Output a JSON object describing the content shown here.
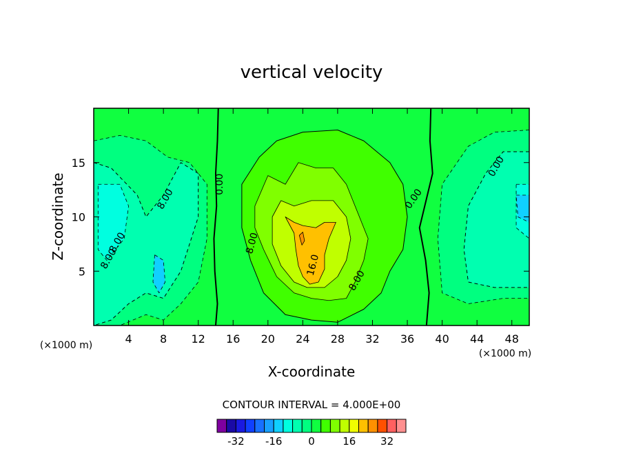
{
  "chart_data": {
    "type": "heatmap",
    "title": "vertical velocity",
    "xlabel": "X-coordinate",
    "ylabel": "Z-coordinate",
    "x_unit": "(×1000 m)",
    "x_unit_right": "(×1000 m)",
    "xlim": [
      0,
      50
    ],
    "ylim": [
      0,
      20
    ],
    "xticks": [
      "4",
      "8",
      "12",
      "16",
      "20",
      "24",
      "28",
      "32",
      "36",
      "40",
      "44",
      "48"
    ],
    "yticks": [
      "5",
      "10",
      "15"
    ],
    "contour_interval_text": "CONTOUR INTERVAL = 4.000E+00",
    "colorbar": {
      "levels": [
        -36,
        -32,
        -28,
        -24,
        -20,
        -16,
        -12,
        -8,
        -4,
        0,
        4,
        8,
        12,
        16,
        20,
        24,
        28,
        32,
        36
      ],
      "tick_labels": [
        "-32",
        "-16",
        "0",
        "16",
        "32"
      ],
      "colors": [
        "#7f00a0",
        "#1a0aa6",
        "#1a1ae0",
        "#1040ff",
        "#1870ff",
        "#18a0ff",
        "#10d0ff",
        "#00ffe0",
        "#00ffb0",
        "#00ff80",
        "#10ff40",
        "#40ff00",
        "#80ff00",
        "#c0ff00",
        "#f0ff00",
        "#ffc000",
        "#ff9000",
        "#ff5000",
        "#ff6060",
        "#ff9090"
      ]
    },
    "contour_labels": [
      "0.00",
      "8.00",
      "8.00",
      "0.00",
      "16.0",
      "8.00",
      "8.00",
      "0.00",
      "8.00"
    ],
    "regions": [
      {
        "value": 2,
        "color": "#10ff40",
        "note": "background 0 to 4"
      },
      {
        "value": -2,
        "color": "#00ff80",
        "polygon": [
          [
            0,
            17
          ],
          [
            3,
            17.5
          ],
          [
            6,
            17
          ],
          [
            8.5,
            15.5
          ],
          [
            11,
            15
          ],
          [
            13,
            13
          ],
          [
            13,
            8
          ],
          [
            12,
            4
          ],
          [
            10,
            2
          ],
          [
            8,
            0.5
          ],
          [
            6,
            1
          ],
          [
            3,
            0
          ],
          [
            0,
            0
          ]
        ]
      },
      {
        "value": -2,
        "color": "#00ff80",
        "polygon": [
          [
            50,
            18
          ],
          [
            46,
            17.8
          ],
          [
            43,
            16.5
          ],
          [
            40,
            13
          ],
          [
            39.5,
            8
          ],
          [
            40,
            3
          ],
          [
            43,
            2
          ],
          [
            47,
            2.5
          ],
          [
            50,
            2.5
          ]
        ]
      },
      {
        "value": -6,
        "color": "#00ffb0",
        "polygon": [
          [
            0,
            15
          ],
          [
            2,
            14.5
          ],
          [
            5,
            12
          ],
          [
            6,
            10
          ],
          [
            8,
            12
          ],
          [
            10,
            15
          ],
          [
            12,
            14
          ],
          [
            12,
            10
          ],
          [
            10,
            5
          ],
          [
            8,
            2.5
          ],
          [
            6,
            3
          ],
          [
            4,
            2
          ],
          [
            2,
            0.5
          ],
          [
            0,
            0
          ]
        ]
      },
      {
        "value": -6,
        "color": "#00ffb0",
        "polygon": [
          [
            50,
            16
          ],
          [
            47,
            16
          ],
          [
            45,
            14
          ],
          [
            43,
            11
          ],
          [
            42.5,
            7
          ],
          [
            43,
            4
          ],
          [
            46,
            3.5
          ],
          [
            50,
            3.5
          ]
        ]
      },
      {
        "value": -10,
        "color": "#00ffe0",
        "polygon": [
          [
            0.5,
            13
          ],
          [
            3,
            13
          ],
          [
            4,
            11
          ],
          [
            3.5,
            8
          ],
          [
            1.5,
            6
          ],
          [
            0.5,
            7
          ]
        ]
      },
      {
        "value": -10,
        "color": "#00ffe0",
        "polygon": [
          [
            48.5,
            13
          ],
          [
            50,
            13
          ],
          [
            50,
            8
          ],
          [
            48.5,
            9
          ]
        ]
      },
      {
        "value": -14,
        "color": "#10d0ff",
        "polygon": [
          [
            7,
            6.5
          ],
          [
            8,
            6
          ],
          [
            8.2,
            4
          ],
          [
            7.5,
            3
          ],
          [
            6.8,
            4
          ]
        ]
      },
      {
        "value": -14,
        "color": "#10d0ff",
        "polygon": [
          [
            48.5,
            12
          ],
          [
            50,
            12
          ],
          [
            50,
            9.5
          ],
          [
            48.7,
            10
          ]
        ]
      },
      {
        "value": 6,
        "color": "#40ff00",
        "polygon": [
          [
            17,
            13
          ],
          [
            19,
            15.5
          ],
          [
            21,
            17
          ],
          [
            24,
            17.8
          ],
          [
            28,
            18
          ],
          [
            31,
            17
          ],
          [
            34,
            15
          ],
          [
            35.5,
            13
          ],
          [
            36,
            10
          ],
          [
            35.5,
            7
          ],
          [
            34,
            5
          ],
          [
            33,
            3
          ],
          [
            31,
            1.5
          ],
          [
            28,
            0.3
          ],
          [
            25,
            0.5
          ],
          [
            22,
            1
          ],
          [
            19.5,
            3
          ],
          [
            18,
            6
          ],
          [
            17,
            9
          ]
        ]
      },
      {
        "value": 10,
        "color": "#80ff00",
        "polygon": [
          [
            18.5,
            11
          ],
          [
            20,
            13.8
          ],
          [
            22,
            13
          ],
          [
            23.5,
            15
          ],
          [
            25.5,
            14.5
          ],
          [
            27.5,
            14.5
          ],
          [
            29,
            13
          ],
          [
            30,
            11
          ],
          [
            31.5,
            8
          ],
          [
            31,
            6
          ],
          [
            30,
            4
          ],
          [
            29,
            2.5
          ],
          [
            27,
            2.3
          ],
          [
            25,
            2.5
          ],
          [
            23,
            3
          ],
          [
            21,
            4.5
          ],
          [
            19.5,
            7
          ],
          [
            18.5,
            9
          ]
        ]
      },
      {
        "value": 14,
        "color": "#c0ff00",
        "polygon": [
          [
            20.5,
            10
          ],
          [
            21.5,
            11.5
          ],
          [
            23,
            11
          ],
          [
            25,
            11.5
          ],
          [
            27.5,
            11.5
          ],
          [
            29,
            10
          ],
          [
            29.5,
            8
          ],
          [
            29,
            6
          ],
          [
            28,
            4.5
          ],
          [
            26.5,
            3.5
          ],
          [
            24.5,
            3.5
          ],
          [
            23,
            4
          ],
          [
            21.5,
            5.5
          ],
          [
            20.5,
            7.5
          ]
        ]
      },
      {
        "value": 18,
        "color": "#ffc000",
        "polygon": [
          [
            22,
            10
          ],
          [
            23,
            9.5
          ],
          [
            24,
            9.2
          ],
          [
            25.5,
            9
          ],
          [
            26.5,
            9.5
          ],
          [
            27.8,
            9.5
          ],
          [
            27,
            8
          ],
          [
            26.5,
            6.5
          ],
          [
            26.5,
            5.2
          ],
          [
            25.8,
            4
          ],
          [
            24.8,
            3.8
          ],
          [
            24,
            4.5
          ],
          [
            23.5,
            5.5
          ],
          [
            23.2,
            7
          ],
          [
            23,
            8.5
          ]
        ]
      },
      {
        "value": 22,
        "color": "#ff9000",
        "polygon": [
          [
            23.6,
            8.3
          ],
          [
            24,
            8.6
          ],
          [
            24.2,
            7.8
          ],
          [
            23.9,
            7.4
          ]
        ]
      }
    ]
  }
}
